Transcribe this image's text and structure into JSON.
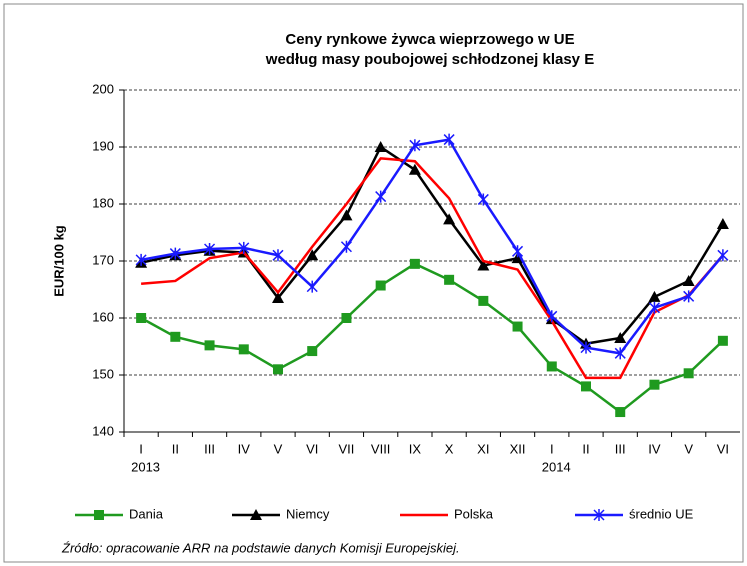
{
  "chart_data": {
    "type": "line",
    "title": [
      "Ceny rynkowe żywca wieprzowego w UE",
      "według masy poubojowej schłodzonej klasy E"
    ],
    "ylabel": "EUR/100 kg",
    "categories": [
      "I",
      "II",
      "III",
      "IV",
      "V",
      "VI",
      "VII",
      "VIII",
      "IX",
      "X",
      "XI",
      "XII",
      "I",
      "II",
      "III",
      "IV",
      "V",
      "VI"
    ],
    "years": [
      "2013",
      null,
      null,
      null,
      null,
      null,
      null,
      null,
      null,
      null,
      null,
      null,
      "2014",
      null,
      null,
      null,
      null,
      null
    ],
    "ylim": [
      140,
      200
    ],
    "yticks": [
      140,
      150,
      160,
      170,
      180,
      190,
      200
    ],
    "grid": true,
    "series": [
      {
        "name": "Dania",
        "color": "#1f9a1f",
        "marker": "square",
        "values": [
          160,
          156.7,
          155.2,
          154.5,
          151,
          154.2,
          160,
          165.7,
          169.5,
          166.7,
          163,
          158.5,
          151.5,
          148,
          143.5,
          148.3,
          150.3,
          156
        ]
      },
      {
        "name": "Niemcy",
        "color": "#000000",
        "marker": "triangle",
        "values": [
          169.7,
          171,
          171.8,
          171.5,
          163.5,
          171,
          178,
          190,
          186,
          177.3,
          169.2,
          170.5,
          159.8,
          155.5,
          156.5,
          163.7,
          166.5,
          176.5
        ]
      },
      {
        "name": "Polska",
        "color": "#ff0000",
        "marker": "none",
        "values": [
          166,
          166.5,
          170.5,
          171.5,
          164.5,
          172.5,
          180,
          188,
          187.5,
          181,
          170,
          168.5,
          159.5,
          149.5,
          149.5,
          161,
          164,
          171
        ]
      },
      {
        "name": "średnio UE",
        "color": "#1a1aff",
        "marker": "star",
        "values": [
          170.2,
          171.3,
          172.1,
          172.3,
          171,
          165.5,
          172.5,
          181.3,
          190.3,
          191.3,
          180.8,
          171.7,
          160.3,
          154.8,
          153.8,
          161.8,
          163.8,
          171
        ]
      }
    ],
    "source": "Źródło: opracowanie ARR na podstawie danych Komisji Europejskiej."
  }
}
